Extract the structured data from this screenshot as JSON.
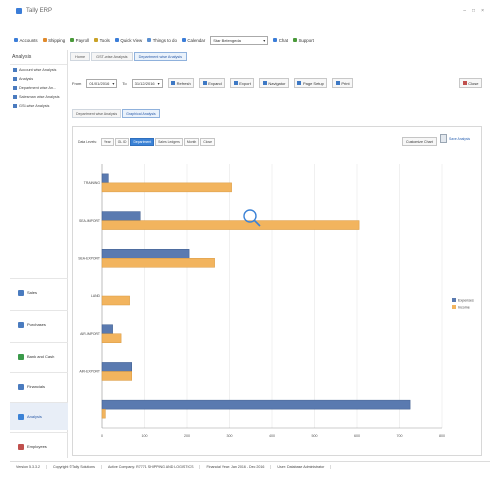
{
  "window": {
    "title": "Tally ERP",
    "controls": [
      "–",
      "□",
      "×"
    ]
  },
  "menubar": {
    "items": [
      {
        "label": "Accounts",
        "icon": "accounts-icon",
        "color": "#3b7dd8"
      },
      {
        "label": "Shipping",
        "icon": "shipping-icon",
        "color": "#e08a2c"
      },
      {
        "label": "Payroll",
        "icon": "payroll-icon",
        "color": "#4a9a3a"
      },
      {
        "label": "Tools",
        "icon": "tools-icon",
        "color": "#c9a227"
      },
      {
        "label": "Quick View",
        "icon": "quick-view-icon",
        "color": "#3b7dd8"
      },
      {
        "label": "Things to do",
        "icon": "things-to-do-icon",
        "color": "#5a8fd0"
      },
      {
        "label": "Calendar",
        "icon": "calendar-icon",
        "color": "#3b7dd8"
      }
    ],
    "company_select": "Star Belengeda",
    "chat": "Chat",
    "support": "Support"
  },
  "sidebar": {
    "title": "Analysis",
    "items": [
      {
        "label": "Account wise Analysis"
      },
      {
        "label": "Analysis"
      },
      {
        "label": "Department wise An..."
      },
      {
        "label": "Salesman wise Analysis"
      },
      {
        "label": "GSI-wise Analysis"
      }
    ],
    "nav": [
      {
        "label": "Sales",
        "icon": "sales-icon",
        "color": "#4a7bbf"
      },
      {
        "label": "Purchases",
        "icon": "purchases-icon",
        "color": "#4a7bbf"
      },
      {
        "label": "Bank and Cash",
        "icon": "bank-icon",
        "color": "#3a9a4a"
      },
      {
        "label": "Financials",
        "icon": "financials-icon",
        "color": "#4a7bbf"
      },
      {
        "label": "Analysis",
        "icon": "analysis-icon",
        "color": "#3b82d6"
      },
      {
        "label": "Employees",
        "icon": "employees-icon",
        "color": "#c0504d"
      }
    ]
  },
  "tabs": [
    "Home",
    "GST-wise Analysis",
    "Department wise Analysis"
  ],
  "toolbar": {
    "from_label": "From",
    "from_value": "01/01/2016",
    "to_label": "To",
    "to_value": "31/12/2016",
    "buttons": [
      "Refresh",
      "Expand",
      "Export",
      "Navigator",
      "Page Setup",
      "Print"
    ],
    "close": "Close"
  },
  "subtabs": [
    "Department wise Analysis",
    "Graphical Analysis"
  ],
  "levels": {
    "label": "Data Levels:",
    "options": [
      "Year",
      "GL ID",
      "Department",
      "Sales Ledgers",
      "Month",
      "Close"
    ],
    "active": 2
  },
  "customize": "Customize Chart",
  "pdf_link": "Save Analysis",
  "colors": {
    "series1": "#5a7ab0",
    "series2": "#f2b45e"
  },
  "chart_data": {
    "type": "bar",
    "orientation": "horizontal",
    "categories": [
      "TRAINING",
      "SEA-IMPORT",
      "SEA-EXPORT",
      "LAND",
      "AIR-IMPORT",
      "AIR-EXPORT",
      ""
    ],
    "series": [
      {
        "name": "Expenses",
        "values": [
          15,
          90,
          205,
          0,
          25,
          70,
          725
        ]
      },
      {
        "name": "Income",
        "values": [
          305,
          605,
          265,
          65,
          45,
          70,
          8
        ]
      }
    ],
    "xticks": [
      0,
      100,
      200,
      300,
      400,
      500,
      600,
      700,
      800
    ],
    "xlim": [
      0,
      800
    ],
    "grid": true,
    "legend": "right"
  },
  "statusbar": {
    "version": "Version 5.3.3.2",
    "copyright": "Copyright ©Tally Solutions",
    "company": "Active Company: R7771 SHIPPING AND LOGISTICS",
    "period": "Financial Year: Jan 2016 - Dec 2016",
    "user": "User: Database Administrator"
  }
}
